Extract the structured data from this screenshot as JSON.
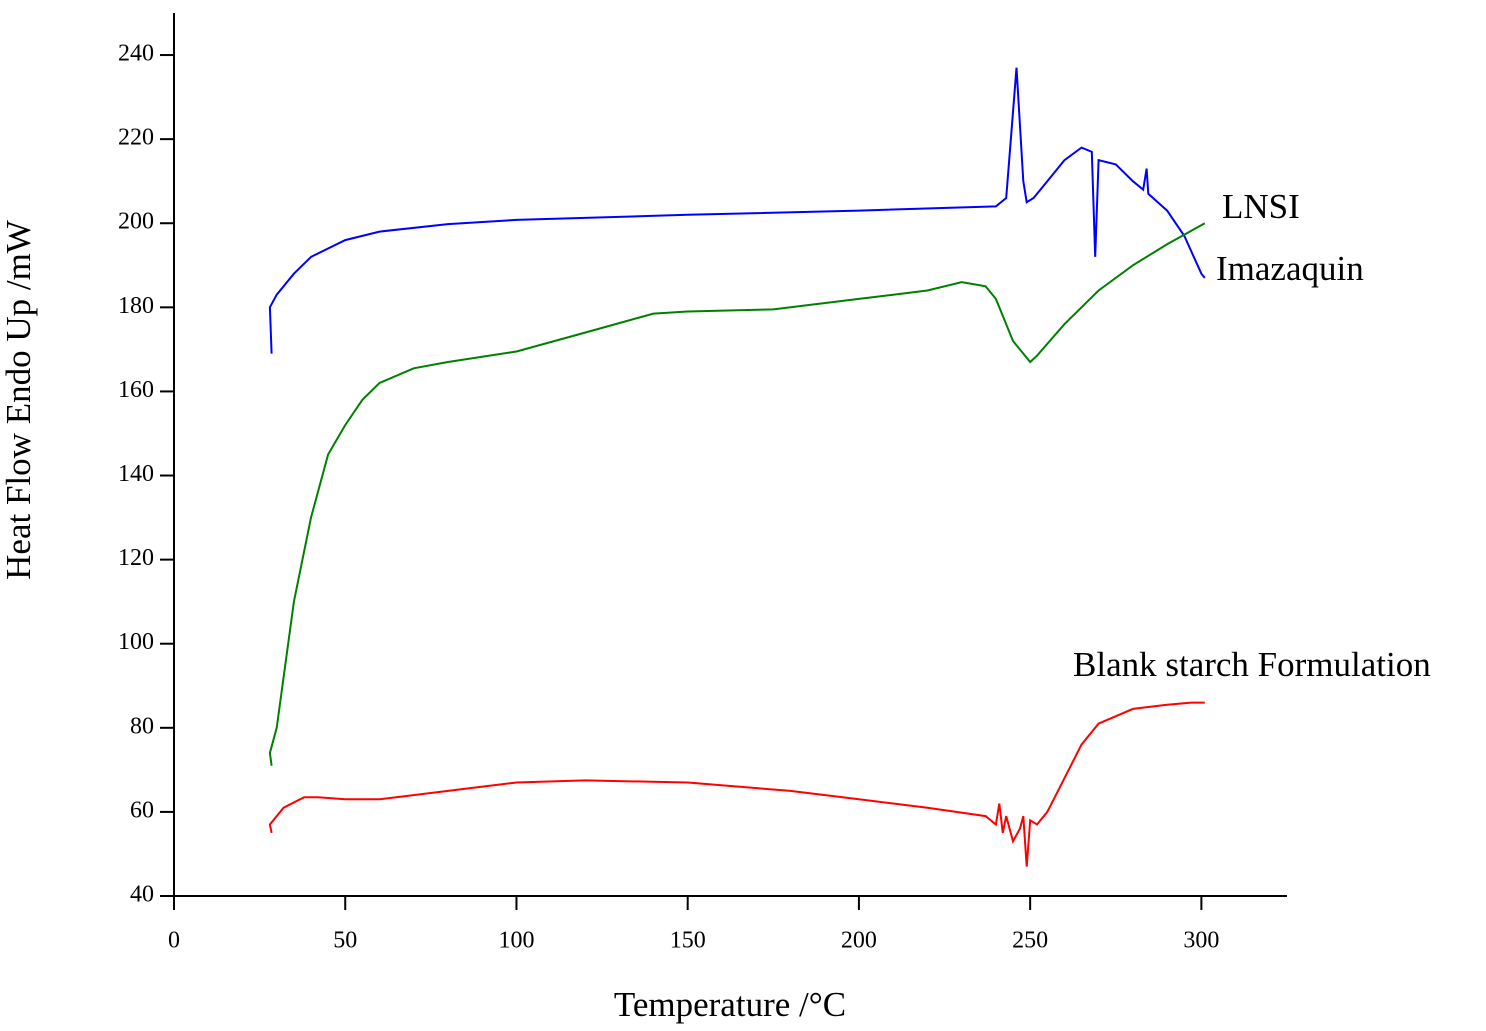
{
  "chart_data": {
    "type": "line",
    "x_label": "Temperature /°C",
    "y_label": "Heat Flow Endo Up /mW",
    "xlim": [
      0,
      325
    ],
    "ylim": [
      40,
      250
    ],
    "xticks": [
      0,
      50,
      100,
      150,
      200,
      250,
      300
    ],
    "yticks": [
      40,
      60,
      80,
      100,
      120,
      140,
      160,
      180,
      200,
      220,
      240
    ],
    "series": [
      {
        "name": "LNSI",
        "color": "#0000ff",
        "x": [
          28.5,
          28,
          30,
          35,
          40,
          50,
          60,
          80,
          100,
          150,
          200,
          240,
          243,
          246,
          248,
          249,
          251,
          255,
          260,
          265,
          268,
          269,
          270,
          275,
          280,
          283,
          284,
          284.5,
          290,
          295,
          300,
          301
        ],
        "values": [
          169,
          180,
          183,
          188,
          192,
          196,
          198,
          199.8,
          200.8,
          202,
          203,
          204,
          206,
          237,
          210,
          205,
          206,
          210,
          215,
          218,
          217,
          192,
          215,
          214,
          210,
          208,
          213,
          207,
          203,
          197,
          188,
          187
        ]
      },
      {
        "name": "Imazaquin",
        "color": "#008000",
        "x": [
          28.5,
          28,
          30,
          35,
          40,
          45,
          50,
          55,
          60,
          70,
          80,
          100,
          120,
          140,
          150,
          175,
          200,
          220,
          230,
          237,
          240,
          245,
          250,
          252,
          260,
          270,
          280,
          290,
          301
        ],
        "values": [
          71,
          74,
          80,
          110,
          130,
          145,
          152,
          158,
          162,
          165.5,
          167,
          169.5,
          174,
          178.5,
          179,
          179.5,
          182,
          184,
          186,
          185,
          182,
          172,
          167,
          168.5,
          176,
          184,
          190,
          195,
          200
        ]
      },
      {
        "name": "Blank starch Formulation",
        "color": "#ff0000",
        "x": [
          28.5,
          28,
          32,
          38,
          42,
          50,
          60,
          80,
          100,
          120,
          150,
          180,
          200,
          220,
          237,
          240,
          241,
          242,
          243,
          245,
          247,
          248,
          249,
          250,
          252,
          255,
          260,
          265,
          270,
          280,
          290,
          297,
          301
        ],
        "values": [
          55,
          57,
          61,
          63.5,
          63.5,
          63,
          63,
          65,
          67,
          67.5,
          67,
          65,
          63,
          61,
          59,
          57,
          62,
          55,
          59,
          53,
          56,
          59,
          47,
          58,
          57,
          60,
          68,
          76,
          81,
          84.5,
          85.5,
          86,
          86
        ]
      }
    ]
  }
}
